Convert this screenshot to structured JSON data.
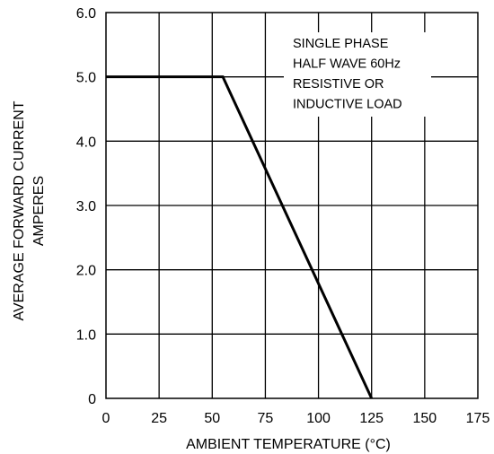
{
  "chart_data": {
    "type": "line",
    "title": "",
    "xlabel": "AMBIENT TEMPERATURE  (°C)",
    "ylabel_lines": [
      "AVERAGE FORWARD CURRENT",
      "AMPERES"
    ],
    "xlim": [
      0,
      175
    ],
    "ylim": [
      0,
      6.0
    ],
    "x_ticks": [
      0,
      25,
      50,
      75,
      100,
      125,
      150,
      175
    ],
    "x_tick_labels": [
      "0",
      "25",
      "50",
      "75",
      "100",
      "125",
      "150",
      "175"
    ],
    "y_ticks": [
      0,
      1,
      2,
      3,
      4,
      5,
      6
    ],
    "y_tick_labels": [
      "0",
      "1.0",
      "2.0",
      "3.0",
      "4.0",
      "5.0",
      "6.0"
    ],
    "grid": true,
    "series": [
      {
        "x": [
          0,
          55,
          125
        ],
        "y": [
          5.0,
          5.0,
          0
        ]
      }
    ],
    "annotation": [
      "SINGLE PHASE",
      "HALF WAVE 60Hz",
      "RESISTIVE OR",
      "INDUCTIVE LOAD"
    ]
  },
  "colors": {
    "line": "#000000",
    "grid": "#000000",
    "background": "#ffffff"
  }
}
